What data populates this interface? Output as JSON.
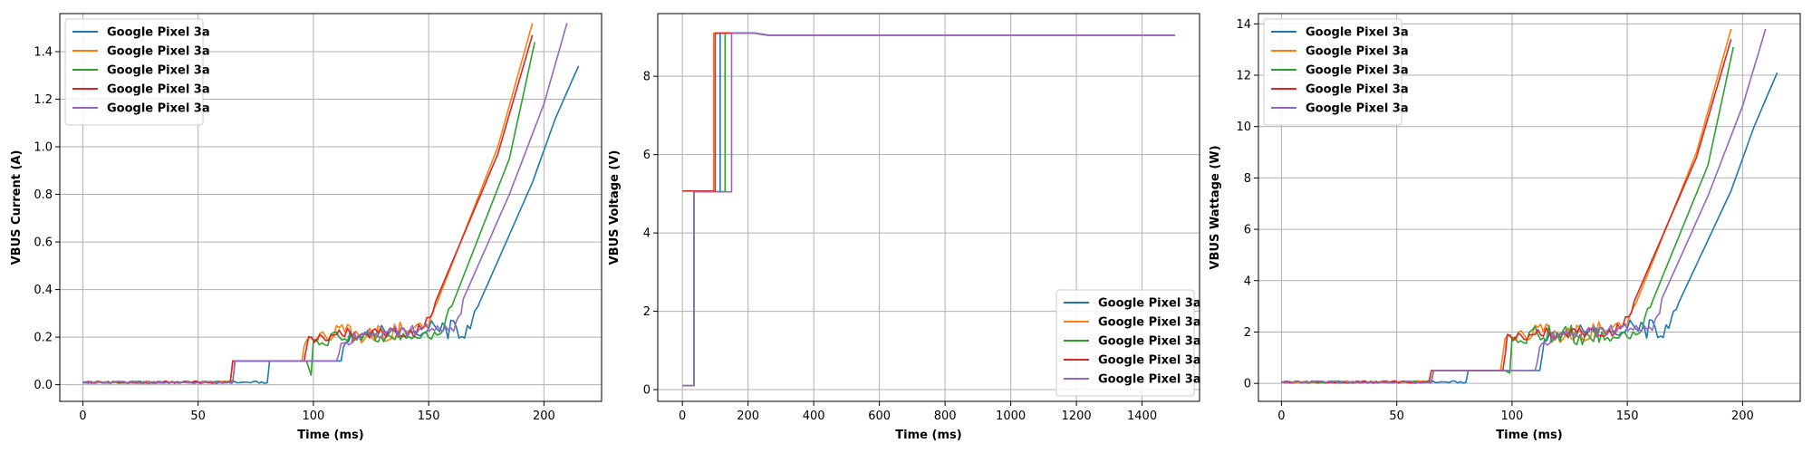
{
  "chart_data": [
    {
      "type": "line",
      "title": "",
      "xlabel": "Time (ms)",
      "ylabel": "VBUS Current (A)",
      "xlim": [
        -10,
        225
      ],
      "ylim": [
        -0.07,
        1.56
      ],
      "xticks": [
        0,
        50,
        100,
        150,
        200
      ],
      "yticks": [
        0.0,
        0.2,
        0.4,
        0.6,
        0.8,
        1.0,
        1.2,
        1.4
      ],
      "tick_decimals": 1,
      "grid": true,
      "legend": "upper-left",
      "series": [
        {
          "name": "Google Pixel 3a",
          "color": "#1f77b4",
          "points": [
            [
              0,
              0.01
            ],
            [
              80,
              0.01
            ],
            [
              81,
              0.1
            ],
            [
              112,
              0.1
            ],
            [
              114,
              0.17
            ],
            [
              120,
              0.22
            ],
            [
              150,
              0.23
            ],
            [
              168,
              0.23
            ],
            [
              170,
              0.3
            ],
            [
              195,
              0.85
            ],
            [
              205,
              1.12
            ],
            [
              215,
              1.34
            ]
          ]
        },
        {
          "name": "Google Pixel 3a",
          "color": "#ff7f0e",
          "points": [
            [
              0,
              0.01
            ],
            [
              64,
              0.01
            ],
            [
              65,
              0.1
            ],
            [
              95,
              0.1
            ],
            [
              97,
              0.18
            ],
            [
              110,
              0.22
            ],
            [
              140,
              0.22
            ],
            [
              150,
              0.25
            ],
            [
              155,
              0.38
            ],
            [
              180,
              1.0
            ],
            [
              195,
              1.52
            ]
          ]
        },
        {
          "name": "Google Pixel 3a",
          "color": "#2ca02c",
          "points": [
            [
              0,
              0.01
            ],
            [
              65,
              0.01
            ],
            [
              66,
              0.1
            ],
            [
              97,
              0.1
            ],
            [
              99,
              0.04
            ],
            [
              100,
              0.17
            ],
            [
              110,
              0.2
            ],
            [
              145,
              0.21
            ],
            [
              155,
              0.22
            ],
            [
              160,
              0.33
            ],
            [
              185,
              0.95
            ],
            [
              196,
              1.44
            ]
          ]
        },
        {
          "name": "Google Pixel 3a",
          "color": "#d62728",
          "points": [
            [
              0,
              0.01
            ],
            [
              64,
              0.01
            ],
            [
              65,
              0.1
            ],
            [
              96,
              0.1
            ],
            [
              98,
              0.18
            ],
            [
              110,
              0.21
            ],
            [
              140,
              0.22
            ],
            [
              148,
              0.24
            ],
            [
              153,
              0.35
            ],
            [
              180,
              0.97
            ],
            [
              195,
              1.47
            ]
          ]
        },
        {
          "name": "Google Pixel 3a",
          "color": "#9467bd",
          "points": [
            [
              0,
              0.01
            ],
            [
              65,
              0.01
            ],
            [
              66,
              0.1
            ],
            [
              110,
              0.1
            ],
            [
              113,
              0.18
            ],
            [
              120,
              0.22
            ],
            [
              155,
              0.23
            ],
            [
              162,
              0.25
            ],
            [
              165,
              0.36
            ],
            [
              185,
              0.8
            ],
            [
              200,
              1.18
            ],
            [
              210,
              1.52
            ]
          ]
        }
      ]
    },
    {
      "type": "line",
      "title": "",
      "xlabel": "Time (ms)",
      "ylabel": "VBUS Voltage (V)",
      "xlim": [
        -75,
        1575
      ],
      "ylim": [
        -0.3,
        9.6
      ],
      "xticks": [
        0,
        200,
        400,
        600,
        800,
        1000,
        1200,
        1400
      ],
      "yticks": [
        0,
        2,
        4,
        6,
        8
      ],
      "tick_decimals": 0,
      "grid": true,
      "legend": "lower-right",
      "series": [
        {
          "name": "Google Pixel 3a",
          "color": "#1f77b4",
          "points": [
            [
              0,
              0.1
            ],
            [
              35,
              0.1
            ],
            [
              35,
              5.05
            ],
            [
              115,
              5.05
            ],
            [
              115,
              9.1
            ],
            [
              220,
              9.1
            ],
            [
              260,
              9.05
            ],
            [
              1500,
              9.05
            ]
          ]
        },
        {
          "name": "Google Pixel 3a",
          "color": "#ff7f0e",
          "points": [
            [
              0,
              0.1
            ],
            [
              35,
              0.1
            ],
            [
              35,
              5.05
            ],
            [
              95,
              5.05
            ],
            [
              95,
              9.1
            ],
            [
              220,
              9.1
            ],
            [
              260,
              9.05
            ],
            [
              1500,
              9.05
            ]
          ]
        },
        {
          "name": "Google Pixel 3a",
          "color": "#2ca02c",
          "points": [
            [
              0,
              0.1
            ],
            [
              35,
              0.1
            ],
            [
              35,
              5.05
            ],
            [
              130,
              5.05
            ],
            [
              130,
              9.1
            ],
            [
              220,
              9.1
            ],
            [
              260,
              9.05
            ],
            [
              1500,
              9.05
            ]
          ]
        },
        {
          "name": "Google Pixel 3a",
          "color": "#d62728",
          "points": [
            [
              0,
              5.07
            ],
            [
              100,
              5.07
            ],
            [
              100,
              9.1
            ],
            [
              220,
              9.1
            ],
            [
              260,
              9.05
            ],
            [
              1500,
              9.05
            ]
          ]
        },
        {
          "name": "Google Pixel 3a",
          "color": "#9467bd",
          "points": [
            [
              0,
              0.1
            ],
            [
              35,
              0.1
            ],
            [
              35,
              5.05
            ],
            [
              150,
              5.05
            ],
            [
              150,
              9.1
            ],
            [
              220,
              9.1
            ],
            [
              260,
              9.05
            ],
            [
              1500,
              9.05
            ]
          ]
        }
      ]
    },
    {
      "type": "line",
      "title": "",
      "xlabel": "Time (ms)",
      "ylabel": "VBUS Wattage (W)",
      "xlim": [
        -10,
        225
      ],
      "ylim": [
        -0.7,
        14.4
      ],
      "xticks": [
        0,
        50,
        100,
        150,
        200
      ],
      "yticks": [
        0,
        2,
        4,
        6,
        8,
        10,
        12,
        14
      ],
      "tick_decimals": 0,
      "grid": true,
      "legend": "upper-left",
      "series": [
        {
          "name": "Google Pixel 3a",
          "color": "#1f77b4",
          "points": [
            [
              0,
              0.05
            ],
            [
              80,
              0.05
            ],
            [
              81,
              0.5
            ],
            [
              112,
              0.5
            ],
            [
              114,
              1.6
            ],
            [
              120,
              2.0
            ],
            [
              150,
              2.1
            ],
            [
              168,
              2.1
            ],
            [
              170,
              2.7
            ],
            [
              195,
              7.5
            ],
            [
              205,
              10.0
            ],
            [
              215,
              12.1
            ]
          ]
        },
        {
          "name": "Google Pixel 3a",
          "color": "#ff7f0e",
          "points": [
            [
              0,
              0.05
            ],
            [
              64,
              0.05
            ],
            [
              65,
              0.5
            ],
            [
              95,
              0.5
            ],
            [
              97,
              1.7
            ],
            [
              110,
              2.0
            ],
            [
              140,
              2.0
            ],
            [
              150,
              2.3
            ],
            [
              155,
              3.4
            ],
            [
              180,
              9.0
            ],
            [
              195,
              13.8
            ]
          ]
        },
        {
          "name": "Google Pixel 3a",
          "color": "#2ca02c",
          "points": [
            [
              0,
              0.05
            ],
            [
              65,
              0.05
            ],
            [
              66,
              0.5
            ],
            [
              97,
              0.5
            ],
            [
              99,
              0.4
            ],
            [
              100,
              1.6
            ],
            [
              110,
              1.9
            ],
            [
              145,
              1.9
            ],
            [
              155,
              2.0
            ],
            [
              160,
              3.0
            ],
            [
              185,
              8.5
            ],
            [
              196,
              13.1
            ]
          ]
        },
        {
          "name": "Google Pixel 3a",
          "color": "#d62728",
          "points": [
            [
              0,
              0.05
            ],
            [
              64,
              0.05
            ],
            [
              65,
              0.5
            ],
            [
              96,
              0.5
            ],
            [
              98,
              1.7
            ],
            [
              110,
              1.9
            ],
            [
              140,
              2.0
            ],
            [
              148,
              2.2
            ],
            [
              153,
              3.2
            ],
            [
              180,
              8.8
            ],
            [
              195,
              13.4
            ]
          ]
        },
        {
          "name": "Google Pixel 3a",
          "color": "#9467bd",
          "points": [
            [
              0,
              0.05
            ],
            [
              65,
              0.05
            ],
            [
              66,
              0.5
            ],
            [
              110,
              0.5
            ],
            [
              113,
              1.6
            ],
            [
              120,
              2.0
            ],
            [
              155,
              2.1
            ],
            [
              162,
              2.3
            ],
            [
              165,
              3.3
            ],
            [
              185,
              7.3
            ],
            [
              200,
              10.8
            ],
            [
              210,
              13.8
            ]
          ]
        }
      ]
    }
  ]
}
